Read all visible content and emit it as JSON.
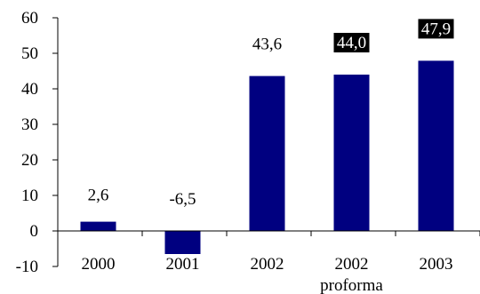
{
  "chart_data": {
    "type": "bar",
    "categories": [
      "2000",
      "2001",
      "2002",
      "2002",
      "2003"
    ],
    "category_sublabels": [
      "",
      "",
      "",
      "proforma",
      ""
    ],
    "values": [
      2.6,
      -6.5,
      43.6,
      44.0,
      47.9
    ],
    "data_labels": [
      "2,6",
      "-6,5",
      "43,6",
      "44,0",
      "47,9"
    ],
    "highlighted_labels": [
      false,
      false,
      false,
      true,
      true
    ],
    "title": "",
    "xlabel": "",
    "ylabel": "",
    "ylim": [
      -10,
      60
    ],
    "yticks": [
      60,
      50,
      40,
      30,
      20,
      10,
      0,
      -10
    ],
    "grid": false,
    "legend": "none",
    "bar_color": "#000080",
    "label_box_color": "#000000"
  }
}
